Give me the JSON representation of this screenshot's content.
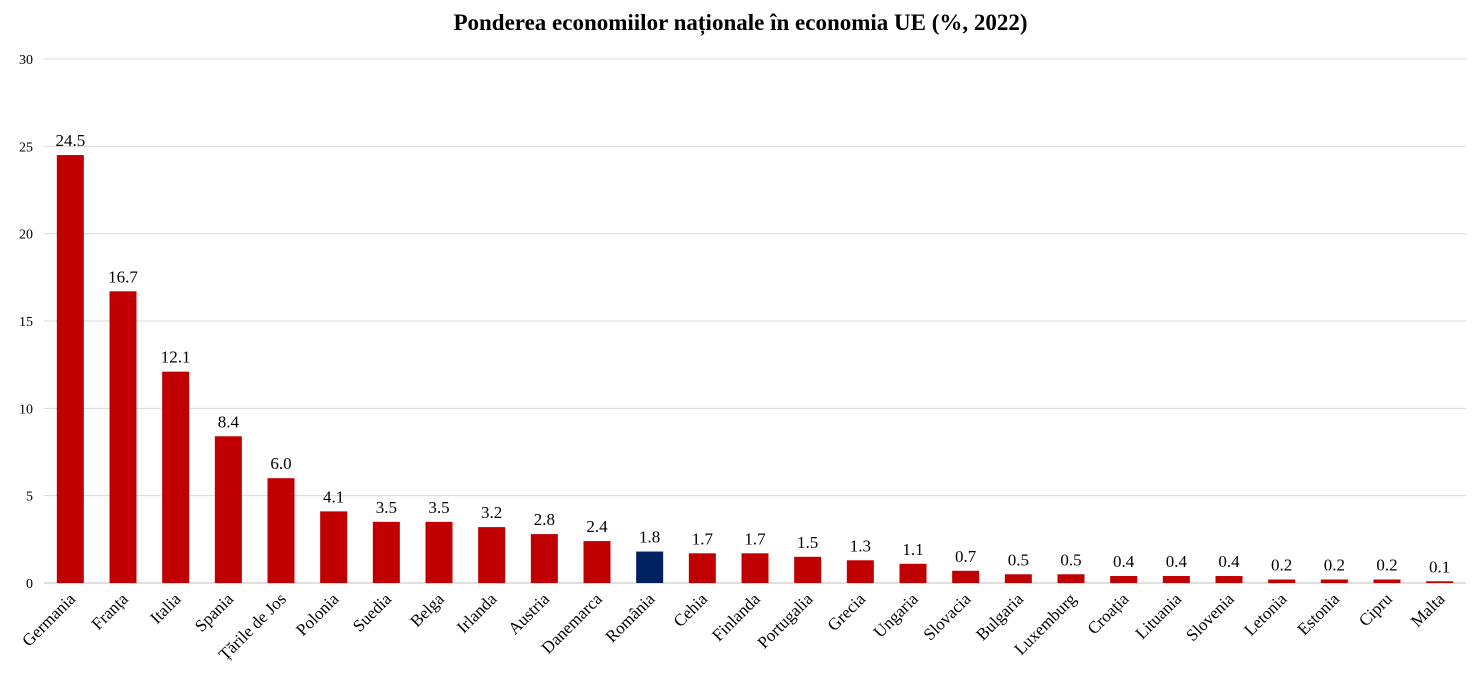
{
  "chart_data": {
    "type": "bar",
    "title": "Ponderea economiilor naționale în economia UE (%, 2022)",
    "xlabel": "",
    "ylabel": "",
    "ylim": [
      0,
      30
    ],
    "yticks": [
      "0",
      "5",
      "10",
      "15",
      "20",
      "25",
      "30"
    ],
    "grid": true,
    "legend": "none",
    "categories": [
      "Germania",
      "Franța",
      "Italia",
      "Spania",
      "Țările de Jos",
      "Polonia",
      "Suedia",
      "Belga",
      "Irlanda",
      "Austria",
      "Danemarca",
      "România",
      "Cehia",
      "Finlanda",
      "Portugalia",
      "Grecia",
      "Ungaria",
      "Slovacia",
      "Bulgaria",
      "Luxemburg",
      "Croația",
      "Lituania",
      "Slovenia",
      "Letonia",
      "Estonia",
      "Cipru",
      "Malta"
    ],
    "values": [
      24.5,
      16.7,
      12.1,
      8.4,
      6.0,
      4.1,
      3.5,
      3.5,
      3.2,
      2.8,
      2.4,
      1.8,
      1.7,
      1.7,
      1.5,
      1.3,
      1.1,
      0.7,
      0.5,
      0.5,
      0.4,
      0.4,
      0.4,
      0.2,
      0.2,
      0.2,
      0.1
    ],
    "value_labels": [
      "24.5",
      "16.7",
      "12.1",
      "8.4",
      "6.0",
      "4.1",
      "3.5",
      "3.5",
      "3.2",
      "2.8",
      "2.4",
      "1.8",
      "1.7",
      "1.7",
      "1.5",
      "1.3",
      "1.1",
      "0.7",
      "0.5",
      "0.5",
      "0.4",
      "0.4",
      "0.4",
      "0.2",
      "0.2",
      "0.2",
      "0.1"
    ],
    "colors": {
      "bar": "#c00000",
      "highlight": "#002060",
      "grid": "#d9d9d9",
      "axis": "#bfbfbf",
      "text": "#000000"
    },
    "highlight_category": "România"
  }
}
